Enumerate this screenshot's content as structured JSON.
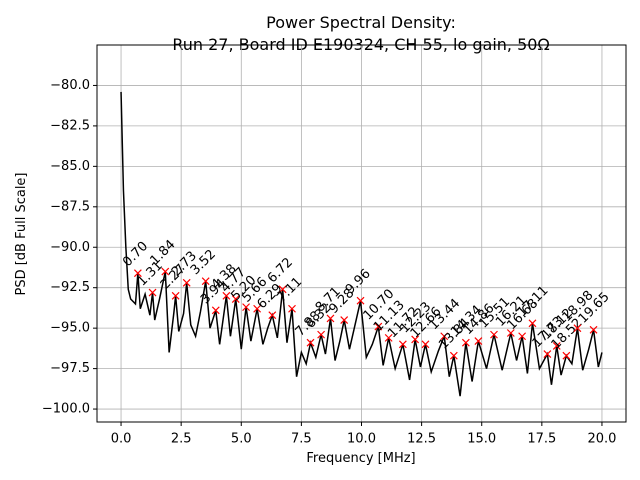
{
  "chart_data": {
    "type": "line",
    "title": "Power Spectral Density:",
    "subtitle": "Run 27, Board ID E190324, CH 55, lo gain, 50Ω",
    "x_label": "Frequency [MHz]",
    "y_label": "PSD [dB Full Scale]",
    "xlim": [
      -1,
      21
    ],
    "ylim": [
      -100.8,
      -77.5
    ],
    "xticks": [
      {
        "value": 0,
        "label": "0.0"
      },
      {
        "value": 2.5,
        "label": "2.5"
      },
      {
        "value": 5,
        "label": "5.0"
      },
      {
        "value": 7.5,
        "label": "7.5"
      },
      {
        "value": 10,
        "label": "10.0"
      },
      {
        "value": 12.5,
        "label": "12.5"
      },
      {
        "value": 15,
        "label": "15.0"
      },
      {
        "value": 17.5,
        "label": "17.5"
      },
      {
        "value": 20,
        "label": "20.0"
      }
    ],
    "yticks": [
      {
        "value": -80,
        "label": "−80.0"
      },
      {
        "value": -82.5,
        "label": "−82.5"
      },
      {
        "value": -85,
        "label": "−85.0"
      },
      {
        "value": -87.5,
        "label": "−87.5"
      },
      {
        "value": -90,
        "label": "−90.0"
      },
      {
        "value": -92.5,
        "label": "−92.5"
      },
      {
        "value": -95,
        "label": "−95.0"
      },
      {
        "value": -97.5,
        "label": "−97.5"
      },
      {
        "value": -100,
        "label": "−100.0"
      }
    ],
    "grid": true,
    "color": "#000000",
    "x": [
      0,
      0.1,
      0.2,
      0.3,
      0.4,
      0.6,
      0.7,
      0.8,
      1.0,
      1.2,
      1.31,
      1.4,
      1.6,
      1.84,
      2.0,
      2.2,
      2.27,
      2.4,
      2.6,
      2.73,
      2.9,
      3.1,
      3.3,
      3.52,
      3.7,
      3.94,
      4.1,
      4.38,
      4.55,
      4.77,
      5.0,
      5.2,
      5.4,
      5.66,
      5.9,
      6.1,
      6.29,
      6.5,
      6.72,
      6.9,
      7.11,
      7.3,
      7.5,
      7.7,
      7.88,
      8.1,
      8.32,
      8.5,
      8.71,
      8.9,
      9.1,
      9.28,
      9.5,
      9.7,
      9.96,
      10.2,
      10.45,
      10.7,
      10.9,
      11.13,
      11.4,
      11.72,
      12.0,
      12.23,
      12.45,
      12.66,
      12.9,
      13.2,
      13.44,
      13.65,
      13.84,
      14.1,
      14.34,
      14.6,
      14.86,
      15.2,
      15.51,
      15.85,
      16.21,
      16.45,
      16.68,
      16.9,
      17.11,
      17.4,
      17.73,
      17.9,
      18.12,
      18.3,
      18.52,
      18.75,
      18.98,
      19.2,
      19.45,
      19.65,
      19.85,
      20.0
    ],
    "values": [
      -80.4,
      -86.5,
      -90,
      -92.6,
      -93.2,
      -93.5,
      -91.6,
      -93.8,
      -92.9,
      -94.2,
      -92.8,
      -94.5,
      -93.2,
      -91.5,
      -96.5,
      -94.0,
      -93.0,
      -95.2,
      -94.1,
      -92.2,
      -94.8,
      -95.5,
      -94.0,
      -92.1,
      -95.0,
      -93.9,
      -96.0,
      -93.0,
      -95.5,
      -93.2,
      -96.3,
      -93.7,
      -95.8,
      -93.8,
      -96.0,
      -95.0,
      -94.2,
      -95.6,
      -92.6,
      -95.9,
      -93.8,
      -98.0,
      -96.5,
      -97.2,
      -95.9,
      -96.8,
      -95.4,
      -96.6,
      -94.4,
      -97.0,
      -95.8,
      -94.5,
      -96.3,
      -95.0,
      -93.3,
      -96.8,
      -96.0,
      -94.9,
      -97.3,
      -95.6,
      -97.5,
      -96.0,
      -98.2,
      -95.7,
      -97.4,
      -96.0,
      -97.7,
      -96.4,
      -95.5,
      -98.0,
      -96.7,
      -99.2,
      -95.9,
      -98.3,
      -95.8,
      -97.5,
      -95.4,
      -97.6,
      -95.3,
      -97.0,
      -95.5,
      -97.8,
      -94.7,
      -97.5,
      -96.6,
      -98.5,
      -96.1,
      -97.9,
      -96.7,
      -97.2,
      -95.0,
      -97.6,
      -96.3,
      -95.1,
      -97.4,
      -96.5
    ],
    "peaks": {
      "color": "#ff0000",
      "x": [
        0.7,
        1.31,
        1.84,
        2.27,
        2.73,
        3.52,
        3.94,
        4.38,
        4.77,
        5.2,
        5.66,
        6.29,
        6.72,
        7.11,
        7.88,
        8.32,
        8.71,
        9.28,
        9.96,
        10.7,
        11.13,
        11.72,
        12.23,
        12.66,
        13.44,
        13.84,
        14.34,
        14.86,
        15.51,
        16.21,
        16.68,
        17.11,
        17.73,
        18.12,
        18.52,
        18.98,
        19.65
      ],
      "labels": [
        "0.70",
        "1.31",
        "1.84",
        "2.27",
        "2.73",
        "3.52",
        "3.94",
        "4.38",
        "4.77",
        "5.20",
        "5.66",
        "6.29",
        "6.72",
        "7.11",
        "7.88",
        "8.32",
        "8.71",
        "9.28",
        "9.96",
        "10.70",
        "11.13",
        "11.72",
        "12.23",
        "12.66",
        "13.44",
        "13.84",
        "14.34",
        "14.86",
        "15.51",
        "16.21",
        "16.68",
        "17.11",
        "17.73",
        "18.12",
        "18.52",
        "18.98",
        "19.65"
      ],
      "values": [
        -91.6,
        -92.8,
        -91.5,
        -93.0,
        -92.2,
        -92.1,
        -93.9,
        -93.0,
        -93.2,
        -93.7,
        -93.8,
        -94.2,
        -92.6,
        -93.8,
        -95.9,
        -95.4,
        -94.4,
        -94.5,
        -93.3,
        -94.9,
        -95.6,
        -96.0,
        -95.7,
        -96.0,
        -95.5,
        -96.7,
        -95.9,
        -95.8,
        -95.4,
        -95.3,
        -95.5,
        -94.7,
        -96.6,
        -96.1,
        -96.7,
        -95.0,
        -95.1
      ]
    }
  }
}
